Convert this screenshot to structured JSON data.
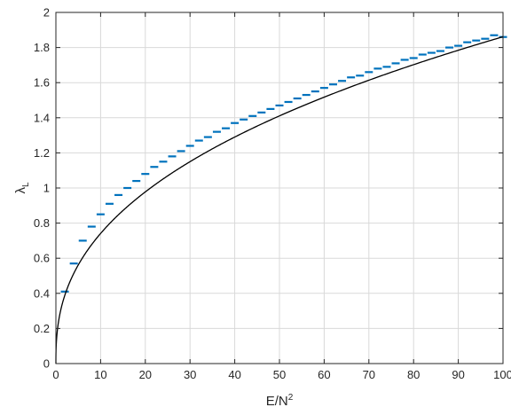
{
  "chart_data": {
    "type": "line",
    "title": "",
    "xlabel": {
      "base": "E/N",
      "sup": "2"
    },
    "ylabel": {
      "base": "λ",
      "sub": "L"
    },
    "xlim": [
      0,
      100
    ],
    "ylim": [
      0,
      2
    ],
    "xticks": [
      0,
      10,
      20,
      30,
      40,
      50,
      60,
      70,
      80,
      90,
      100
    ],
    "yticks": [
      0,
      0.2,
      0.4,
      0.6,
      0.8,
      1,
      1.2,
      1.4,
      1.6,
      1.8,
      2
    ],
    "grid": true,
    "legend": "none",
    "series": [
      {
        "kind": "errorbar-markers",
        "color": "#0072bd",
        "x": [
          2,
          4,
          6,
          8,
          10,
          12,
          14,
          16,
          18,
          20,
          22,
          24,
          26,
          28,
          30,
          32,
          34,
          36,
          38,
          40,
          42,
          44,
          46,
          48,
          50,
          52,
          54,
          56,
          58,
          60,
          62,
          64,
          66,
          68,
          70,
          72,
          74,
          76,
          78,
          80,
          82,
          84,
          86,
          88,
          90,
          92,
          94,
          96,
          98,
          100
        ],
        "y": [
          0.41,
          0.57,
          0.7,
          0.78,
          0.85,
          0.91,
          0.96,
          1.0,
          1.04,
          1.08,
          1.12,
          1.15,
          1.18,
          1.21,
          1.24,
          1.27,
          1.29,
          1.32,
          1.34,
          1.37,
          1.39,
          1.41,
          1.43,
          1.45,
          1.47,
          1.49,
          1.51,
          1.53,
          1.55,
          1.57,
          1.59,
          1.61,
          1.63,
          1.64,
          1.66,
          1.68,
          1.69,
          1.71,
          1.73,
          1.74,
          1.76,
          1.77,
          1.78,
          1.8,
          1.81,
          1.83,
          1.84,
          1.85,
          1.87,
          1.86
        ]
      },
      {
        "kind": "fit-curve",
        "color": "#000000",
        "form": "power",
        "coefficient": 0.295,
        "exponent": 0.4
      }
    ]
  }
}
